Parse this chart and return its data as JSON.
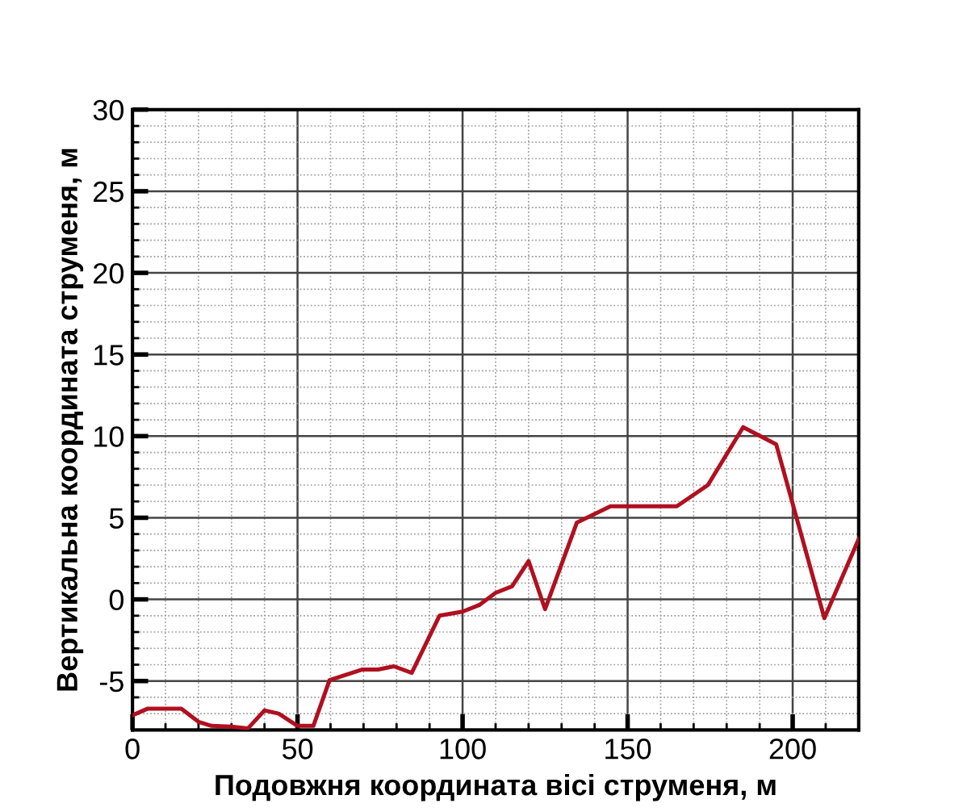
{
  "chart_data": {
    "type": "line",
    "xlabel": "Подовжня координата вісі струменя, м",
    "ylabel": "Вертикальна координата струменя, м",
    "x": [
      0,
      4.5,
      14.8,
      20,
      24,
      30,
      35,
      40,
      44.3,
      50,
      54.8,
      59.7,
      69.5,
      74.4,
      79.2,
      84.6,
      93,
      100,
      105,
      110,
      115,
      120,
      125,
      134.6,
      144.8,
      164.9,
      174.3,
      185,
      195,
      209.6,
      220
    ],
    "values": [
      -7.1,
      -6.7,
      -6.7,
      -7.5,
      -7.75,
      -7.8,
      -7.9,
      -6.8,
      -7.0,
      -7.75,
      -7.75,
      -4.95,
      -4.3,
      -4.3,
      -4.1,
      -4.5,
      -1.0,
      -0.75,
      -0.35,
      0.4,
      0.8,
      2.35,
      -0.6,
      4.7,
      5.7,
      5.7,
      7.0,
      10.55,
      9.5,
      -1.15,
      3.7
    ],
    "color": "#b01020",
    "xlim": [
      0,
      220
    ],
    "ylim": [
      -8,
      30
    ],
    "xticks": [
      0,
      50,
      100,
      150,
      200
    ],
    "yticks": [
      -5,
      0,
      5,
      10,
      15,
      20,
      25,
      30
    ],
    "grid": true,
    "marker": "none",
    "line_style": "solid"
  }
}
